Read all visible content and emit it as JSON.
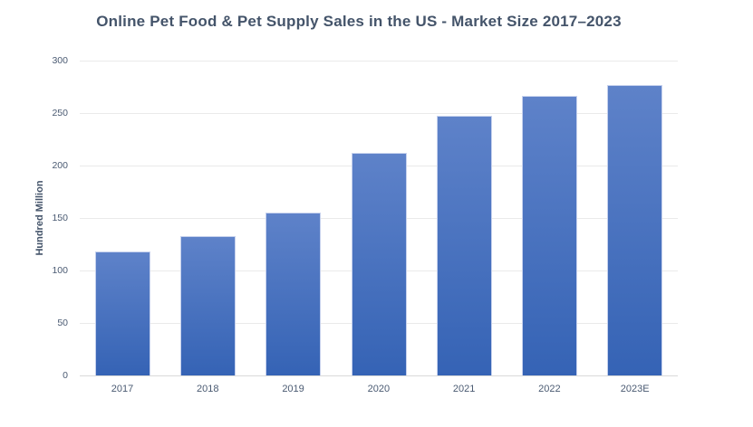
{
  "chart_data": {
    "type": "bar",
    "title": "Online Pet Food & Pet Supply Sales in the US - Market Size 2017–2023",
    "categories": [
      "2017",
      "2018",
      "2019",
      "2020",
      "2021",
      "2022",
      "2023E"
    ],
    "values": [
      118,
      133,
      155,
      212,
      247,
      266,
      277
    ],
    "xlabel": "",
    "ylabel": "Hundred Million",
    "ylim": [
      0,
      300
    ],
    "yticks": [
      0,
      50,
      100,
      150,
      200,
      250,
      300
    ],
    "grid": true,
    "legend": false
  },
  "colors": {
    "background": "#FFFFFF",
    "bar_gradient_top": "#5E82C9",
    "bar_gradient_bottom": "#3563B5",
    "bar_border": "#C6D1ED",
    "title_text": "#44546A",
    "axis_text": "#4A5A72",
    "gridline": "#EAEAEA",
    "axis_line": "#D9D9D9"
  }
}
